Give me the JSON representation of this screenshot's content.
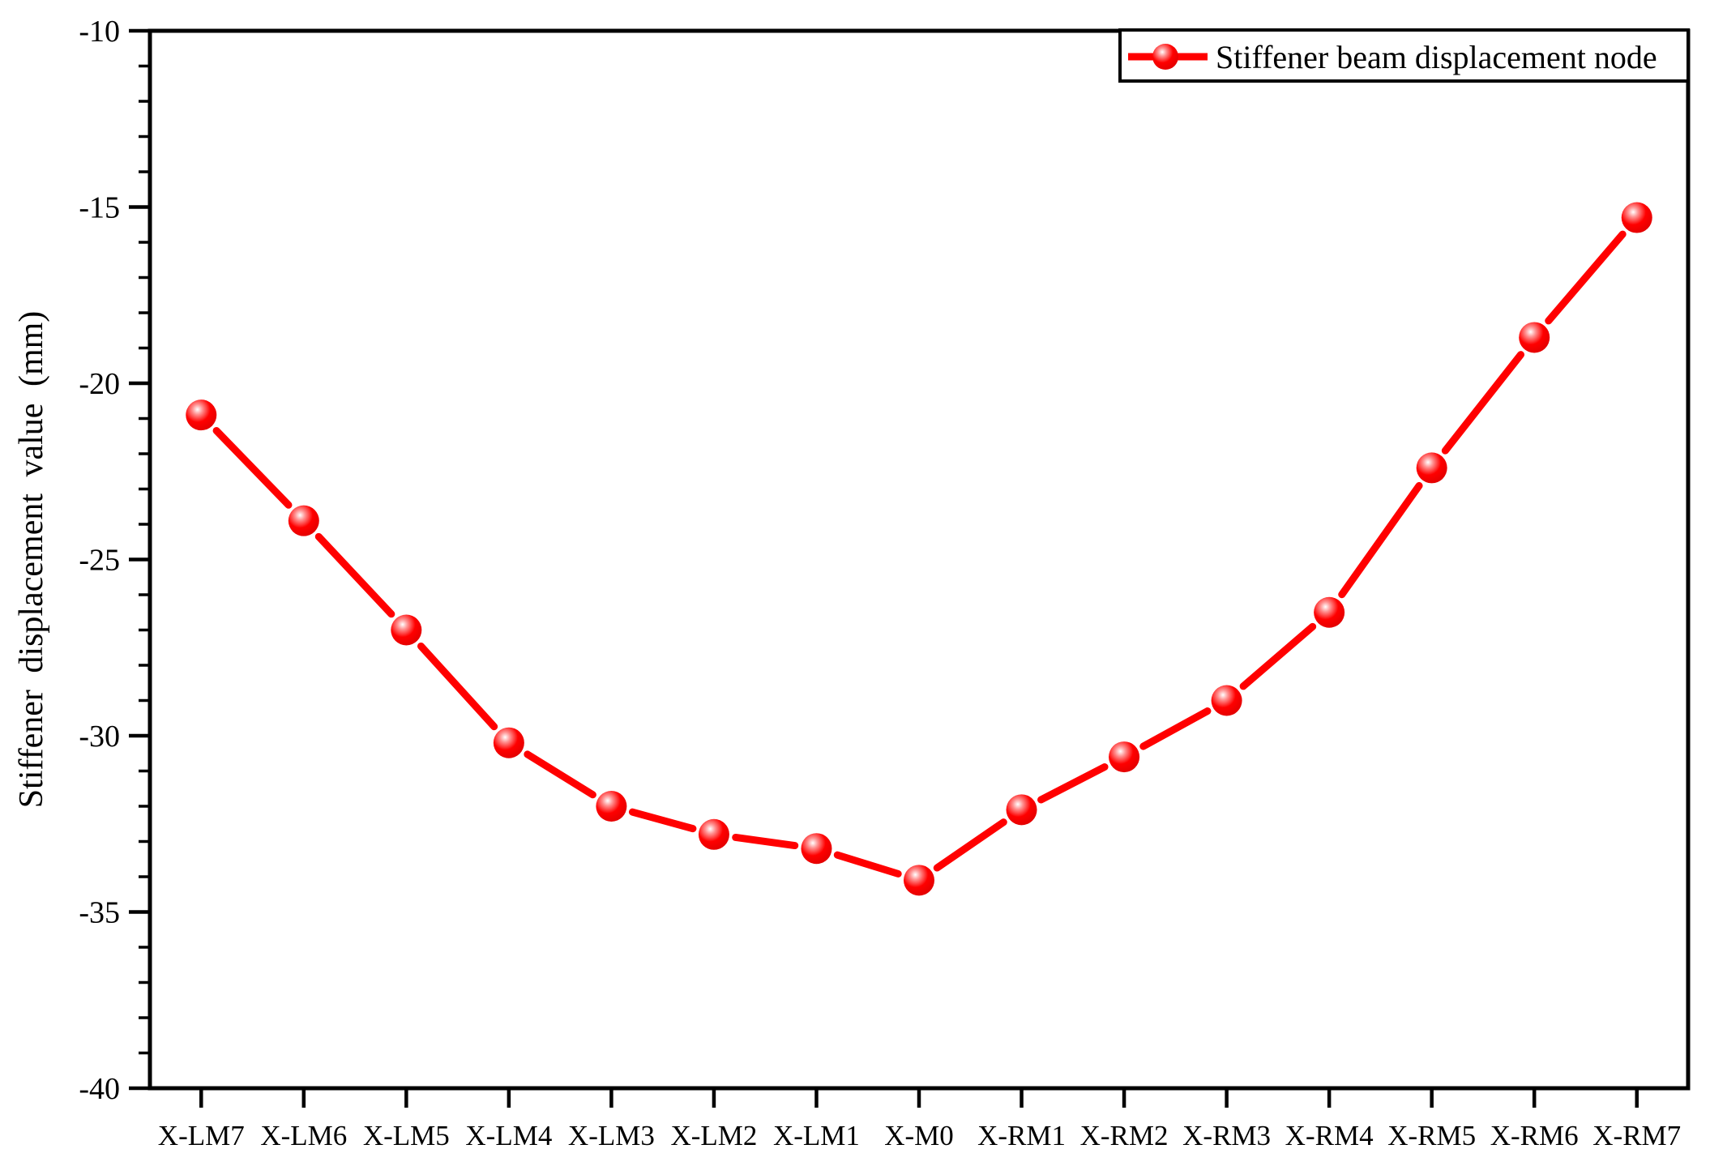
{
  "chart_data": {
    "type": "line",
    "title": "",
    "categories": [
      "X-LM7",
      "X-LM6",
      "X-LM5",
      "X-LM4",
      "X-LM3",
      "X-LM2",
      "X-LM1",
      "X-M0",
      "X-RM1",
      "X-RM2",
      "X-RM3",
      "X-RM4",
      "X-RM5",
      "X-RM6",
      "X-RM7"
    ],
    "series": [
      {
        "name": "Stiffener beam displacement node",
        "values": [
          -20.9,
          -23.9,
          -27.0,
          -30.2,
          -32.0,
          -32.8,
          -33.2,
          -34.1,
          -32.1,
          -30.6,
          -29.0,
          -26.5,
          -22.4,
          -18.7,
          -15.3
        ],
        "color": "#ff0000",
        "marker": "sphere"
      }
    ],
    "xlabel": "",
    "ylabel": "Stiffener  displacement  value (mm)",
    "ylim": [
      -40,
      -10
    ],
    "ytick_major": [
      -10,
      -15,
      -20,
      -25,
      -30,
      -35,
      -40
    ],
    "ytick_labels": [
      "-10",
      "-15",
      "-20",
      "-25",
      "-30",
      "-35",
      "-40"
    ],
    "ytick_minor_step": 1,
    "grid": false,
    "legend": {
      "position": "top-right",
      "label": "Stiffener beam displacement node"
    },
    "colors": {
      "series": "#ff0000",
      "axis": "#000000",
      "background": "#ffffff"
    }
  }
}
